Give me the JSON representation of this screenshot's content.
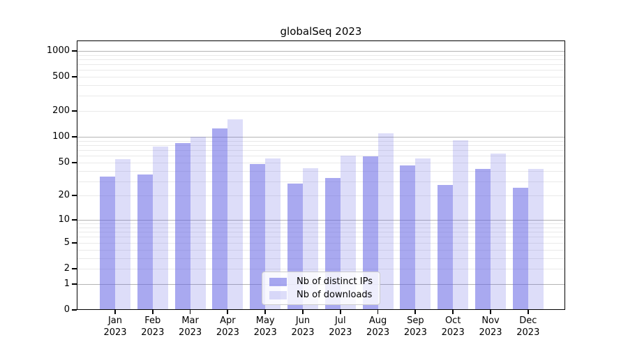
{
  "chart_data": {
    "type": "bar",
    "title": "globalSeq 2023",
    "categories": [
      "Jan",
      "Feb",
      "Mar",
      "Apr",
      "May",
      "Jun",
      "Jul",
      "Aug",
      "Sep",
      "Oct",
      "Nov",
      "Dec"
    ],
    "x_tick_year": "2023",
    "series": [
      {
        "name": "Nb of distinct IPs",
        "color": "#6262e4",
        "opacity": 0.55,
        "values": [
          34,
          36,
          85,
          125,
          48,
          28,
          33,
          59,
          46,
          27,
          42,
          25
        ]
      },
      {
        "name": "Nb of downloads",
        "color": "#6262e4",
        "opacity": 0.22,
        "values": [
          55,
          77,
          100,
          160,
          56,
          43,
          60,
          110,
          56,
          92,
          64,
          42
        ]
      }
    ],
    "y_scale": "log1p",
    "y_ticks": [
      0,
      1,
      2,
      5,
      10,
      20,
      50,
      100,
      200,
      500,
      1000
    ],
    "ylim": [
      0,
      1320
    ],
    "grid": true,
    "legend_position": "lower center",
    "colors": {
      "axis": "#000000",
      "grid_major": "#b4b4b4",
      "grid_minor": "#e9e9e9",
      "bar_solid_dark": "#a9a9f0",
      "bar_solid_light": "#dcdcf9",
      "background": "#ffffff"
    }
  }
}
